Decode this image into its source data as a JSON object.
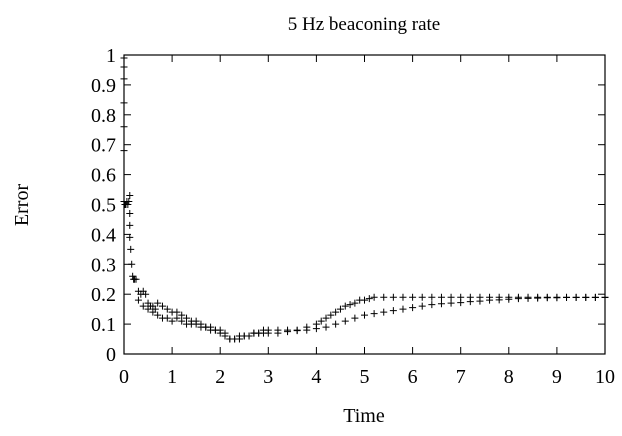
{
  "chart_data": {
    "type": "scatter",
    "title": "5 Hz beaconing rate",
    "xlabel": "Time",
    "ylabel": "Error",
    "xlim": [
      0,
      10
    ],
    "ylim": [
      0,
      1
    ],
    "xticks": [
      "0",
      "1",
      "2",
      "3",
      "4",
      "5",
      "6",
      "7",
      "8",
      "9",
      "10"
    ],
    "yticks": [
      "0",
      "0.1",
      "0.2",
      "0.3",
      "0.4",
      "0.5",
      "0.6",
      "0.7",
      "0.8",
      "0.9",
      "1"
    ],
    "grid": false,
    "marker": "+",
    "colors": {
      "marker": "#000000",
      "axis": "#000000"
    },
    "series": [
      {
        "x": [
          0,
          0,
          0,
          0,
          0,
          0,
          0,
          0.02,
          0.04,
          0.06,
          0.08,
          0.1,
          0.12,
          0.12,
          0.12,
          0.12,
          0.14,
          0.16,
          0.18,
          0.2,
          0.22,
          0.25,
          0.3,
          0.35,
          0.4,
          0.45,
          0.5,
          0.55,
          0.6,
          0.65,
          0.7,
          0.8,
          0.9,
          1.0,
          1.1,
          1.2,
          1.3,
          1.4,
          1.5,
          1.6,
          1.7,
          1.8,
          1.9,
          2.0,
          2.1,
          2.2,
          2.3,
          2.4,
          2.5,
          2.6,
          2.7,
          2.8,
          2.9,
          3.0,
          3.2,
          3.4,
          3.6,
          3.8,
          4.0,
          4.2,
          4.4,
          4.6,
          4.8,
          5.0,
          5.2,
          5.4,
          5.6,
          5.8,
          6.0,
          6.2,
          6.4,
          6.6,
          6.8,
          7.0,
          7.2,
          7.4,
          7.6,
          7.8,
          8.0,
          8.2,
          8.4,
          8.6,
          8.8,
          9.0,
          9.2,
          9.4,
          9.6,
          9.8,
          10.0
        ],
        "y": [
          0.99,
          0.96,
          0.92,
          0.84,
          0.76,
          0.68,
          0.51,
          0.5,
          0.5,
          0.51,
          0.5,
          0.51,
          0.53,
          0.47,
          0.43,
          0.39,
          0.35,
          0.3,
          0.26,
          0.25,
          0.25,
          0.25,
          0.21,
          0.2,
          0.21,
          0.2,
          0.17,
          0.16,
          0.16,
          0.15,
          0.17,
          0.16,
          0.15,
          0.14,
          0.14,
          0.13,
          0.12,
          0.11,
          0.11,
          0.1,
          0.09,
          0.09,
          0.08,
          0.08,
          0.07,
          0.05,
          0.05,
          0.06,
          0.06,
          0.06,
          0.07,
          0.07,
          0.07,
          0.07,
          0.07,
          0.075,
          0.078,
          0.08,
          0.085,
          0.09,
          0.1,
          0.11,
          0.12,
          0.13,
          0.135,
          0.14,
          0.145,
          0.15,
          0.155,
          0.16,
          0.165,
          0.168,
          0.17,
          0.172,
          0.175,
          0.177,
          0.18,
          0.181,
          0.183,
          0.185,
          0.186,
          0.187,
          0.188,
          0.188,
          0.189,
          0.189,
          0.189,
          0.189,
          0.189
        ]
      },
      {
        "x": [
          0.3,
          0.4,
          0.5,
          0.6,
          0.7,
          0.8,
          0.9,
          1.0,
          1.1,
          1.2,
          1.3,
          1.4,
          1.5,
          1.6,
          1.7,
          1.8,
          1.9,
          2.0,
          2.1,
          2.2,
          2.3,
          2.4,
          2.5,
          2.6,
          2.7,
          2.8,
          2.9,
          3.0,
          3.2,
          3.4,
          3.6,
          3.8,
          4.0,
          4.1,
          4.2,
          4.3,
          4.4,
          4.5,
          4.6,
          4.7,
          4.8,
          4.9,
          5.0,
          5.1,
          5.2,
          5.4,
          5.6,
          5.8,
          6.0,
          6.2,
          6.4,
          6.6,
          6.8,
          7.0,
          7.2,
          7.4,
          7.6,
          7.8,
          8.0,
          8.2,
          8.4,
          8.6,
          8.8,
          9.0,
          9.2,
          9.4,
          9.6,
          9.8,
          10.0
        ],
        "y": [
          0.18,
          0.16,
          0.15,
          0.14,
          0.13,
          0.12,
          0.12,
          0.11,
          0.12,
          0.11,
          0.1,
          0.1,
          0.1,
          0.09,
          0.09,
          0.08,
          0.08,
          0.07,
          0.06,
          0.05,
          0.05,
          0.05,
          0.06,
          0.06,
          0.07,
          0.07,
          0.08,
          0.08,
          0.08,
          0.08,
          0.08,
          0.09,
          0.1,
          0.11,
          0.12,
          0.13,
          0.14,
          0.15,
          0.16,
          0.165,
          0.17,
          0.18,
          0.18,
          0.185,
          0.19,
          0.19,
          0.19,
          0.19,
          0.19,
          0.19,
          0.19,
          0.19,
          0.19,
          0.19,
          0.19,
          0.19,
          0.19,
          0.19,
          0.19,
          0.19,
          0.19,
          0.19,
          0.19,
          0.19,
          0.19,
          0.19,
          0.19,
          0.19,
          0.19
        ]
      }
    ]
  }
}
